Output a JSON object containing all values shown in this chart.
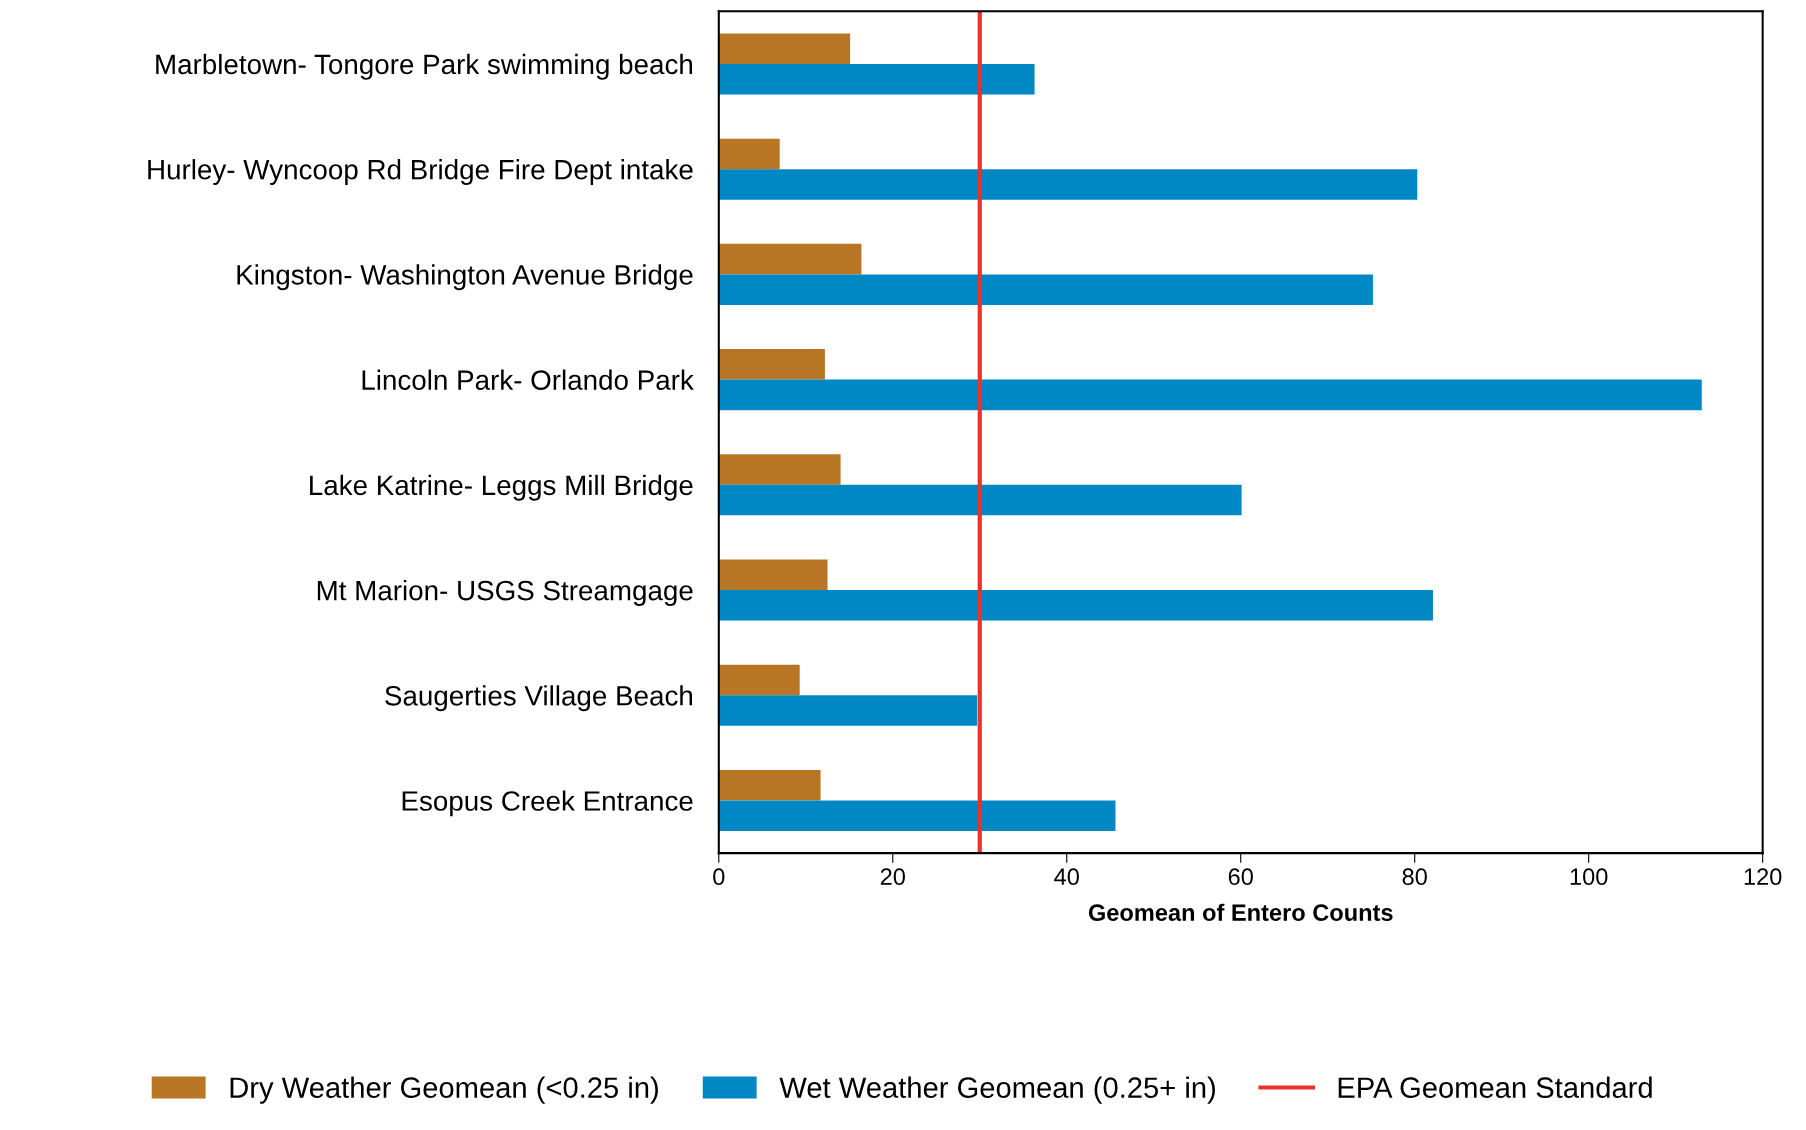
{
  "chart_data": {
    "type": "bar",
    "orientation": "horizontal",
    "xlabel": "Geomean of Entero Counts",
    "categories": [
      "Marbletown- Tongore Park swimming beach",
      "Hurley- Wyncoop Rd Bridge Fire Dept intake",
      "Kingston- Washington Avenue Bridge",
      "Lincoln Park- Orlando Park",
      "Lake Katrine- Leggs Mill Bridge",
      "Mt Marion- USGS Streamgage",
      "Saugerties Village Beach",
      "Esopus Creek Entrance"
    ],
    "series": [
      {
        "name": "Dry Weather Geomean (<0.25 in)",
        "color": "#b87524",
        "values": [
          15.1,
          7.0,
          16.4,
          12.2,
          14.0,
          12.5,
          9.3,
          11.7
        ]
      },
      {
        "name": "Wet Weather Geomean (0.25+ in)",
        "color": "#0088c4",
        "values": [
          36.3,
          80.3,
          75.2,
          113.0,
          60.1,
          82.1,
          29.7,
          45.6
        ]
      }
    ],
    "ref_lines": [
      {
        "axis": "x",
        "value": 30,
        "label": "EPA Geomean Standard",
        "color": "#e8322b"
      }
    ],
    "xlim": [
      0,
      120
    ],
    "xticks": [
      0,
      20,
      40,
      60,
      80,
      100,
      120
    ],
    "grid": false,
    "legend": "bottom"
  }
}
